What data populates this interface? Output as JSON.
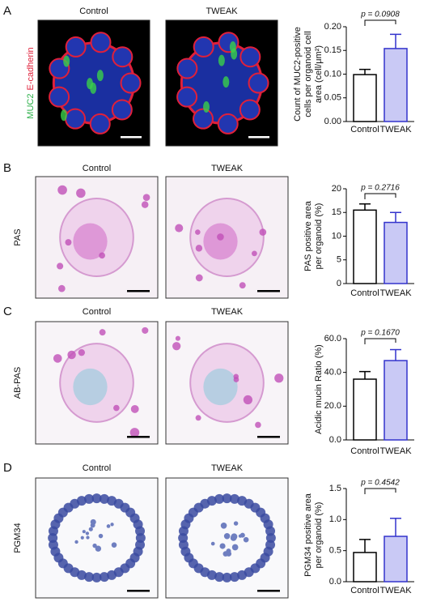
{
  "figure": {
    "panels": [
      {
        "label": "A",
        "image_titles": [
          "Control",
          "TWEAK"
        ],
        "stain_label": [
          "MUC2",
          "E-cadherin"
        ]
      },
      {
        "label": "B",
        "image_titles": [
          "Control",
          "TWEAK"
        ],
        "stain_label": [
          "PAS"
        ]
      },
      {
        "label": "C",
        "image_titles": [
          "Control",
          "TWEAK"
        ],
        "stain_label": [
          "AB-PAS"
        ]
      },
      {
        "label": "D",
        "image_titles": [
          "Control",
          "TWEAK"
        ],
        "stain_label": [
          "PGM34"
        ]
      }
    ]
  },
  "chart_data": [
    {
      "type": "bar",
      "y_label": [
        "Count of MUC2-positive",
        "cells per organoid cell",
        "area (cell/μm²)"
      ],
      "categories": [
        "Control",
        "TWEAK"
      ],
      "values": [
        0.099,
        0.154
      ],
      "errors": [
        0.011,
        0.03
      ],
      "colors": [
        "#ffffff",
        "#c9c9f5"
      ],
      "edge_colors": [
        "#000000",
        "#3333cc"
      ],
      "ylim": [
        0,
        0.2
      ],
      "yticks": [
        {
          "value": 0,
          "label": "0.00"
        },
        0.05,
        {
          "value": 0.1,
          "label": "0.10"
        },
        0.15,
        {
          "value": 0.2,
          "label": "0.20"
        }
      ],
      "annotation": "p = 0.0908"
    },
    {
      "type": "bar",
      "y_label": [
        "PAS positive area",
        "per organoid (%)"
      ],
      "categories": [
        "Control",
        "TWEAK"
      ],
      "values": [
        15.5,
        12.9
      ],
      "errors": [
        1.3,
        2.1
      ],
      "colors": [
        "#ffffff",
        "#c9c9f5"
      ],
      "edge_colors": [
        "#000000",
        "#3333cc"
      ],
      "ylim": [
        0,
        20
      ],
      "yticks": [
        0,
        5,
        10,
        15,
        20
      ],
      "annotation": "p = 0.2716"
    },
    {
      "type": "bar",
      "y_label": [
        "Acidic mucin Ratio (%)"
      ],
      "categories": [
        "Control",
        "TWEAK"
      ],
      "values": [
        36,
        47
      ],
      "errors": [
        4.5,
        6.5
      ],
      "colors": [
        "#ffffff",
        "#c9c9f5"
      ],
      "edge_colors": [
        "#000000",
        "#3333cc"
      ],
      "ylim": [
        0,
        60
      ],
      "yticks": [
        {
          "value": 0,
          "label": "0.0"
        },
        {
          "value": 20,
          "label": "20.0"
        },
        {
          "value": 40,
          "label": "40.0"
        },
        {
          "value": 60,
          "label": "60.0"
        }
      ],
      "annotation": "p = 0.1670"
    },
    {
      "type": "bar",
      "y_label": [
        "PGM34 positive area",
        "per organoid (%)"
      ],
      "categories": [
        "Control",
        "TWEAK"
      ],
      "values": [
        0.47,
        0.73
      ],
      "errors": [
        0.21,
        0.29
      ],
      "colors": [
        "#ffffff",
        "#c9c9f5"
      ],
      "edge_colors": [
        "#000000",
        "#3333cc"
      ],
      "ylim": [
        0,
        1.5
      ],
      "yticks": [
        {
          "value": 0,
          "label": "0.0"
        },
        0.5,
        {
          "value": 1,
          "label": "1.0"
        },
        1.5
      ],
      "annotation": "p = 0.4542"
    }
  ]
}
